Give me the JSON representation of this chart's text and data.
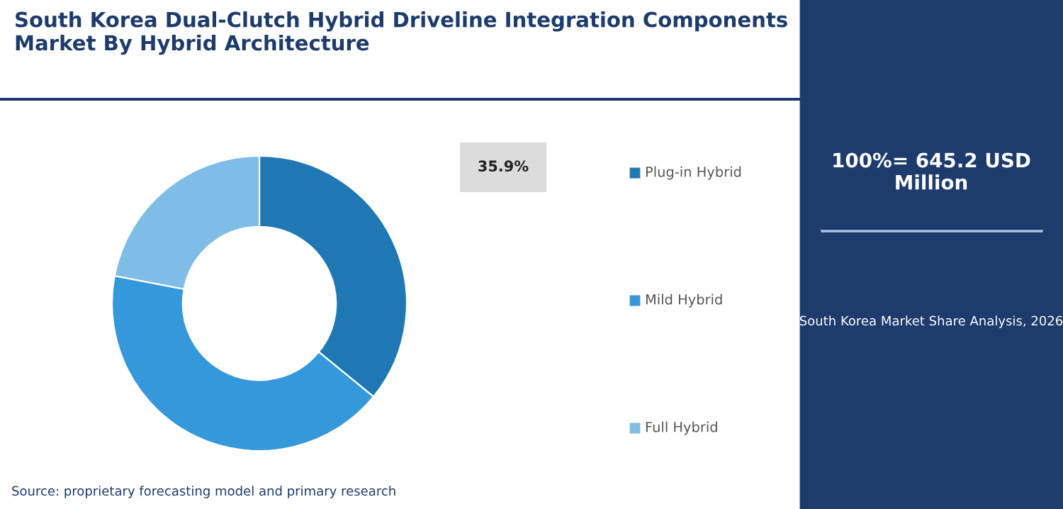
{
  "chart_data": {
    "type": "donut",
    "title": "South Korea Dual-Clutch Hybrid Driveline Integration Components Market By Hybrid Architecture",
    "categories": [
      "Plug-in Hybrid",
      "Mild Hybrid",
      "Full Hybrid"
    ],
    "values": [
      35.9,
      42.1,
      22.0
    ],
    "colors": [
      "#1f78b4",
      "#3498db",
      "#7fbde6"
    ],
    "value_labels": [
      "35.9%",
      null,
      null
    ],
    "legend": "right",
    "annotations": [
      "100%= 645.2 USD Million",
      "South Korea Market Share Analysis, 2026",
      "Source: proprietary forecasting model and primary research"
    ]
  }
}
